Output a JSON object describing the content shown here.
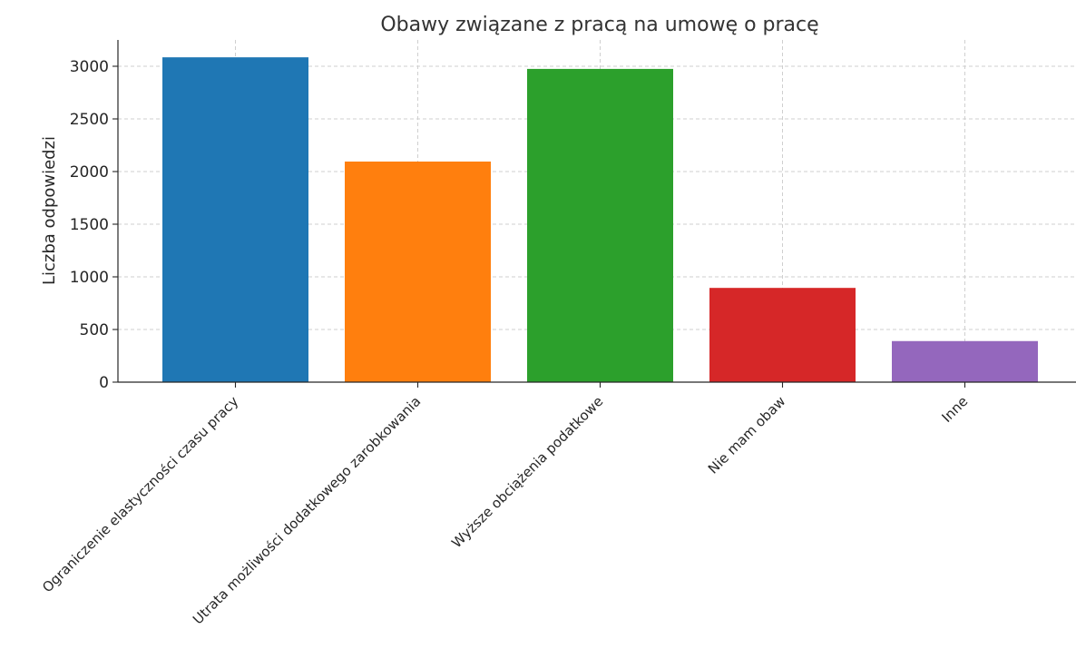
{
  "chart_data": {
    "type": "bar",
    "title": "Obawy związane z pracą na umowę o pracę",
    "xlabel": "",
    "ylabel": "Liczba odpowiedzi",
    "categories": [
      "Ograniczenie elastyczności czasu pracy",
      "Utrata możliwości dodatkowego zarobkowania",
      "Wyższe obciążenia podatkowe",
      "Nie mam obaw",
      "Inne"
    ],
    "values": [
      3085,
      2095,
      2975,
      895,
      390
    ],
    "colors": [
      "#1f77b4",
      "#ff7f0e",
      "#2ca02c",
      "#d62728",
      "#9467bd"
    ],
    "ylim": [
      0,
      3250
    ],
    "yticks": [
      0,
      500,
      1000,
      1500,
      2000,
      2500,
      3000
    ],
    "grid": true,
    "legend": "none"
  }
}
